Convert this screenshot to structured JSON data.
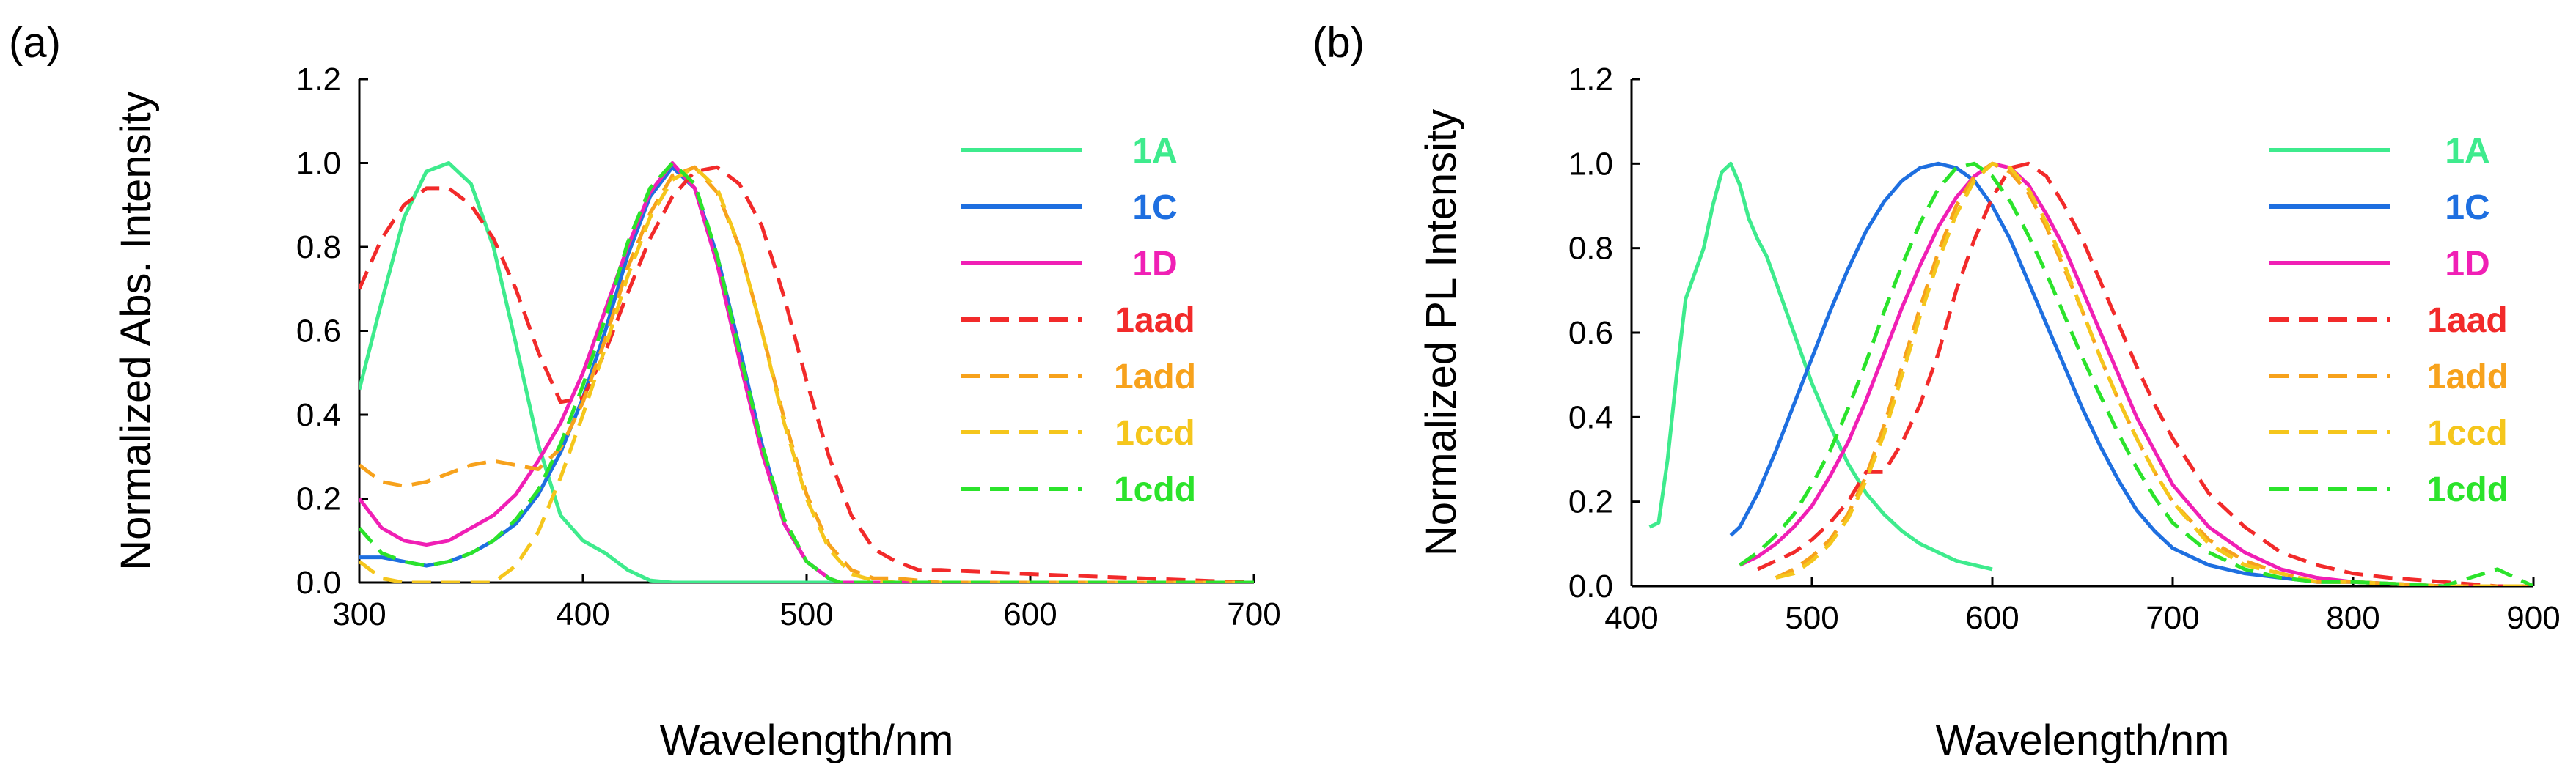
{
  "chart_data": [
    {
      "type": "line",
      "panel": "(a)",
      "xlabel": "Wavelength/nm",
      "ylabel": "Normalized Abs. Intensity",
      "xlim": [
        300,
        700
      ],
      "ylim": [
        0,
        1.2
      ],
      "xticks": [
        "300",
        "400",
        "500",
        "600",
        "700"
      ],
      "yticks": [
        "0.0",
        "0.2",
        "0.4",
        "0.6",
        "0.8",
        "1.0",
        "1.2"
      ],
      "legend_position": "right",
      "series": [
        {
          "name": "1A",
          "color": "#3EEB8D",
          "dash": "solid",
          "x": [
            300,
            310,
            320,
            330,
            340,
            350,
            360,
            370,
            380,
            390,
            400,
            410,
            420,
            430,
            440,
            460,
            500,
            600,
            700
          ],
          "y": [
            0.46,
            0.67,
            0.87,
            0.98,
            1.0,
            0.95,
            0.8,
            0.57,
            0.33,
            0.16,
            0.1,
            0.07,
            0.03,
            0.005,
            0.0,
            0.0,
            0.0,
            0.0,
            0.0
          ]
        },
        {
          "name": "1C",
          "color": "#1E6FE0",
          "dash": "solid",
          "x": [
            300,
            310,
            320,
            330,
            340,
            350,
            360,
            370,
            380,
            390,
            400,
            410,
            420,
            430,
            440,
            450,
            460,
            470,
            480,
            490,
            500,
            510,
            515,
            700
          ],
          "y": [
            0.06,
            0.06,
            0.05,
            0.04,
            0.05,
            0.07,
            0.1,
            0.14,
            0.21,
            0.31,
            0.44,
            0.6,
            0.78,
            0.92,
            0.99,
            0.94,
            0.78,
            0.56,
            0.33,
            0.14,
            0.05,
            0.01,
            0.0,
            0.0
          ]
        },
        {
          "name": "1D",
          "color": "#F01FB5",
          "dash": "solid",
          "x": [
            300,
            310,
            320,
            330,
            340,
            350,
            360,
            370,
            380,
            390,
            400,
            410,
            420,
            430,
            440,
            450,
            460,
            470,
            480,
            490,
            500,
            510,
            515,
            700
          ],
          "y": [
            0.2,
            0.13,
            0.1,
            0.09,
            0.1,
            0.13,
            0.16,
            0.21,
            0.29,
            0.38,
            0.5,
            0.65,
            0.8,
            0.93,
            1.0,
            0.94,
            0.76,
            0.53,
            0.31,
            0.14,
            0.05,
            0.01,
            0.0,
            0.0
          ]
        },
        {
          "name": "1aad",
          "color": "#F22A2A",
          "dash": "dashed",
          "x": [
            300,
            310,
            320,
            330,
            340,
            350,
            360,
            370,
            380,
            390,
            400,
            410,
            420,
            430,
            440,
            450,
            460,
            470,
            480,
            490,
            500,
            510,
            520,
            530,
            540,
            550,
            560,
            600,
            650,
            700
          ],
          "y": [
            0.7,
            0.82,
            0.9,
            0.94,
            0.94,
            0.9,
            0.82,
            0.7,
            0.55,
            0.43,
            0.44,
            0.55,
            0.69,
            0.82,
            0.92,
            0.98,
            0.99,
            0.95,
            0.85,
            0.68,
            0.48,
            0.3,
            0.16,
            0.08,
            0.05,
            0.03,
            0.03,
            0.02,
            0.01,
            0.0
          ]
        },
        {
          "name": "1add",
          "color": "#F7A21C",
          "dash": "dashed",
          "x": [
            300,
            310,
            320,
            330,
            340,
            350,
            360,
            370,
            380,
            390,
            400,
            410,
            420,
            430,
            440,
            450,
            460,
            470,
            480,
            490,
            500,
            510,
            520,
            530,
            540,
            560,
            600,
            700
          ],
          "y": [
            0.28,
            0.24,
            0.23,
            0.24,
            0.26,
            0.28,
            0.29,
            0.28,
            0.27,
            0.32,
            0.43,
            0.58,
            0.75,
            0.88,
            0.97,
            0.99,
            0.93,
            0.8,
            0.6,
            0.39,
            0.21,
            0.09,
            0.03,
            0.01,
            0.01,
            0.0,
            0.0,
            0.0
          ]
        },
        {
          "name": "1ccd",
          "color": "#F5C61C",
          "dash": "dashed",
          "x": [
            300,
            310,
            320,
            330,
            340,
            350,
            360,
            370,
            380,
            390,
            400,
            410,
            420,
            430,
            440,
            450,
            460,
            470,
            480,
            490,
            500,
            510,
            520,
            530,
            540,
            700
          ],
          "y": [
            0.05,
            0.01,
            0.0,
            0.0,
            0.0,
            0.0,
            0.0,
            0.04,
            0.12,
            0.25,
            0.4,
            0.56,
            0.73,
            0.87,
            0.96,
            0.99,
            0.94,
            0.8,
            0.6,
            0.38,
            0.2,
            0.08,
            0.02,
            0.005,
            0.0,
            0.0
          ]
        },
        {
          "name": "1cdd",
          "color": "#2BE32B",
          "dash": "dashed",
          "x": [
            300,
            310,
            320,
            330,
            340,
            350,
            360,
            370,
            380,
            390,
            400,
            410,
            420,
            430,
            440,
            450,
            460,
            470,
            480,
            490,
            500,
            510,
            515,
            700
          ],
          "y": [
            0.13,
            0.07,
            0.05,
            0.04,
            0.05,
            0.07,
            0.1,
            0.15,
            0.22,
            0.33,
            0.47,
            0.63,
            0.81,
            0.94,
            1.0,
            0.95,
            0.78,
            0.55,
            0.33,
            0.15,
            0.05,
            0.01,
            0.0,
            0.0
          ]
        }
      ]
    },
    {
      "type": "line",
      "panel": "(b)",
      "xlabel": "Wavelength/nm",
      "ylabel": "Normalized PL Intensity",
      "xlim": [
        400,
        900
      ],
      "ylim": [
        0,
        1.2
      ],
      "xticks": [
        "400",
        "500",
        "600",
        "700",
        "800",
        "900"
      ],
      "yticks": [
        "0.0",
        "0.2",
        "0.4",
        "0.6",
        "0.8",
        "1.0",
        "1.2"
      ],
      "legend_position": "right",
      "series": [
        {
          "name": "1A",
          "color": "#3EEB8D",
          "dash": "solid",
          "x": [
            410,
            415,
            420,
            425,
            430,
            435,
            440,
            445,
            450,
            455,
            460,
            465,
            470,
            475,
            480,
            490,
            500,
            510,
            520,
            530,
            540,
            550,
            560,
            570,
            580,
            590,
            600
          ],
          "y": [
            0.14,
            0.15,
            0.3,
            0.5,
            0.68,
            0.74,
            0.8,
            0.9,
            0.98,
            1.0,
            0.95,
            0.87,
            0.82,
            0.78,
            0.72,
            0.6,
            0.48,
            0.38,
            0.29,
            0.22,
            0.17,
            0.13,
            0.1,
            0.08,
            0.06,
            0.05,
            0.04
          ]
        },
        {
          "name": "1C",
          "color": "#1E6FE0",
          "dash": "solid",
          "x": [
            455,
            460,
            470,
            480,
            490,
            500,
            510,
            520,
            530,
            540,
            550,
            560,
            570,
            580,
            590,
            600,
            610,
            620,
            630,
            640,
            650,
            660,
            670,
            680,
            690,
            700,
            720,
            740,
            760,
            780,
            800,
            850,
            900
          ],
          "y": [
            0.12,
            0.14,
            0.22,
            0.32,
            0.43,
            0.54,
            0.65,
            0.75,
            0.84,
            0.91,
            0.96,
            0.99,
            1.0,
            0.99,
            0.96,
            0.9,
            0.82,
            0.72,
            0.62,
            0.52,
            0.42,
            0.33,
            0.25,
            0.18,
            0.13,
            0.09,
            0.05,
            0.03,
            0.02,
            0.01,
            0.01,
            0.0,
            0.0
          ]
        },
        {
          "name": "1D",
          "color": "#F01FB5",
          "dash": "solid",
          "x": [
            460,
            470,
            480,
            490,
            500,
            510,
            520,
            530,
            540,
            550,
            560,
            570,
            580,
            590,
            600,
            610,
            620,
            630,
            640,
            650,
            660,
            670,
            680,
            690,
            700,
            720,
            740,
            760,
            780,
            800,
            850,
            900
          ],
          "y": [
            0.05,
            0.07,
            0.1,
            0.14,
            0.19,
            0.26,
            0.34,
            0.44,
            0.55,
            0.66,
            0.76,
            0.85,
            0.92,
            0.97,
            1.0,
            0.99,
            0.95,
            0.88,
            0.8,
            0.7,
            0.6,
            0.5,
            0.4,
            0.32,
            0.24,
            0.14,
            0.08,
            0.04,
            0.02,
            0.01,
            0.0,
            0.0
          ]
        },
        {
          "name": "1aad",
          "color": "#F22A2A",
          "dash": "dashed",
          "x": [
            470,
            480,
            490,
            500,
            510,
            520,
            530,
            540,
            550,
            560,
            570,
            580,
            590,
            600,
            610,
            620,
            630,
            640,
            650,
            660,
            670,
            680,
            690,
            700,
            720,
            740,
            760,
            780,
            800,
            820,
            850,
            880,
            900
          ],
          "y": [
            0.04,
            0.06,
            0.08,
            0.11,
            0.15,
            0.2,
            0.27,
            0.27,
            0.34,
            0.43,
            0.55,
            0.7,
            0.82,
            0.92,
            0.99,
            1.0,
            0.97,
            0.9,
            0.82,
            0.72,
            0.62,
            0.52,
            0.43,
            0.35,
            0.22,
            0.14,
            0.08,
            0.05,
            0.03,
            0.02,
            0.01,
            0.0,
            0.0
          ]
        },
        {
          "name": "1add",
          "color": "#F7A21C",
          "dash": "dashed",
          "x": [
            480,
            490,
            500,
            510,
            520,
            530,
            540,
            550,
            560,
            570,
            580,
            590,
            600,
            610,
            620,
            630,
            640,
            650,
            660,
            670,
            680,
            690,
            700,
            720,
            740,
            760,
            780,
            800,
            850,
            900
          ],
          "y": [
            0.02,
            0.04,
            0.07,
            0.11,
            0.17,
            0.26,
            0.38,
            0.52,
            0.66,
            0.79,
            0.9,
            0.97,
            1.0,
            0.98,
            0.93,
            0.85,
            0.75,
            0.65,
            0.54,
            0.44,
            0.35,
            0.27,
            0.2,
            0.11,
            0.06,
            0.03,
            0.01,
            0.01,
            0.0,
            0.0
          ]
        },
        {
          "name": "1ccd",
          "color": "#F5C61C",
          "dash": "dashed",
          "x": [
            480,
            490,
            500,
            510,
            520,
            530,
            540,
            550,
            560,
            570,
            580,
            590,
            600,
            610,
            620,
            630,
            640,
            650,
            660,
            670,
            680,
            690,
            700,
            720,
            740,
            760,
            780,
            800,
            850,
            900
          ],
          "y": [
            0.02,
            0.03,
            0.06,
            0.1,
            0.16,
            0.25,
            0.36,
            0.5,
            0.64,
            0.77,
            0.88,
            0.96,
            1.0,
            0.99,
            0.94,
            0.86,
            0.76,
            0.65,
            0.54,
            0.44,
            0.35,
            0.27,
            0.2,
            0.1,
            0.05,
            0.03,
            0.01,
            0.01,
            0.0,
            0.0
          ]
        },
        {
          "name": "1cdd",
          "color": "#2BE32B",
          "dash": "dashed",
          "x": [
            460,
            470,
            480,
            490,
            500,
            510,
            520,
            530,
            540,
            550,
            560,
            570,
            580,
            590,
            600,
            610,
            620,
            630,
            640,
            650,
            660,
            670,
            680,
            690,
            700,
            720,
            740,
            760,
            780,
            800,
            850,
            880,
            890,
            900
          ],
          "y": [
            0.05,
            0.08,
            0.12,
            0.17,
            0.24,
            0.32,
            0.42,
            0.53,
            0.65,
            0.76,
            0.86,
            0.94,
            0.99,
            1.0,
            0.97,
            0.91,
            0.83,
            0.74,
            0.64,
            0.54,
            0.45,
            0.36,
            0.28,
            0.21,
            0.15,
            0.08,
            0.04,
            0.02,
            0.01,
            0.01,
            0.0,
            0.04,
            0.02,
            0.0
          ]
        }
      ]
    }
  ]
}
